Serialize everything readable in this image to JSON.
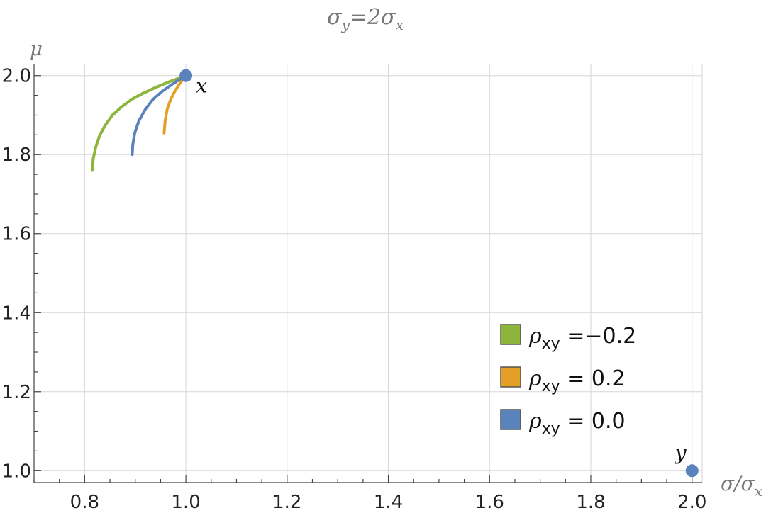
{
  "chart_data": {
    "type": "line",
    "title_parts": {
      "a": "σ",
      "sub1": "y",
      "b": "=2σ",
      "sub2": "x"
    },
    "xlabel": "σ/σ",
    "xlabel_sub": "x",
    "ylabel": "μ",
    "xlim": [
      0.7,
      2.02
    ],
    "ylim": [
      0.97,
      2.03
    ],
    "x_ticks": [
      0.8,
      1.0,
      1.2,
      1.4,
      1.6,
      1.8,
      2.0
    ],
    "x_tick_labels": [
      "0.8",
      "1.0",
      "1.2",
      "1.4",
      "1.6",
      "1.8",
      "2.0"
    ],
    "y_ticks": [
      1.0,
      1.2,
      1.4,
      1.6,
      1.8,
      2.0
    ],
    "y_tick_labels": [
      "1.0",
      "1.2",
      "1.4",
      "1.6",
      "1.8",
      "2.0"
    ],
    "grid": true,
    "legend_position": "bottom-right",
    "series": [
      {
        "name": "ρxy =−0.2",
        "legend_symbol": "ρ",
        "legend_sub": "xy",
        "legend_rest": " =−0.2",
        "color": "#8db53c",
        "x": [
          1.0,
          0.968,
          0.94,
          0.915,
          0.893,
          0.872,
          0.855,
          0.841,
          0.83,
          0.822,
          0.817,
          0.815
        ],
        "y": [
          2.0,
          1.985,
          1.97,
          1.955,
          1.94,
          1.92,
          1.9,
          1.875,
          1.85,
          1.82,
          1.79,
          1.76
        ]
      },
      {
        "name": "ρxy = 0.2",
        "legend_symbol": "ρ",
        "legend_sub": "xy",
        "legend_rest": " = 0.2",
        "color": "#e49f27",
        "x": [
          1.0,
          0.988,
          0.978,
          0.97,
          0.963,
          0.959,
          0.957
        ],
        "y": [
          2.0,
          1.98,
          1.96,
          1.94,
          1.915,
          1.885,
          1.855
        ]
      },
      {
        "name": "ρxy = 0.0",
        "legend_symbol": "ρ",
        "legend_sub": "xy",
        "legend_rest": " = 0.0",
        "color": "#5b83bb",
        "x": [
          1.0,
          0.975,
          0.953,
          0.935,
          0.92,
          0.907,
          0.899,
          0.895,
          0.894
        ],
        "y": [
          2.0,
          1.98,
          1.96,
          1.94,
          1.915,
          1.885,
          1.855,
          1.825,
          1.8
        ]
      }
    ],
    "points": [
      {
        "label": "x",
        "x": 1.0,
        "y": 2.0,
        "color": "#5b83bb"
      },
      {
        "label": "y",
        "x": 2.0,
        "y": 1.0,
        "color": "#5b83bb"
      }
    ]
  }
}
